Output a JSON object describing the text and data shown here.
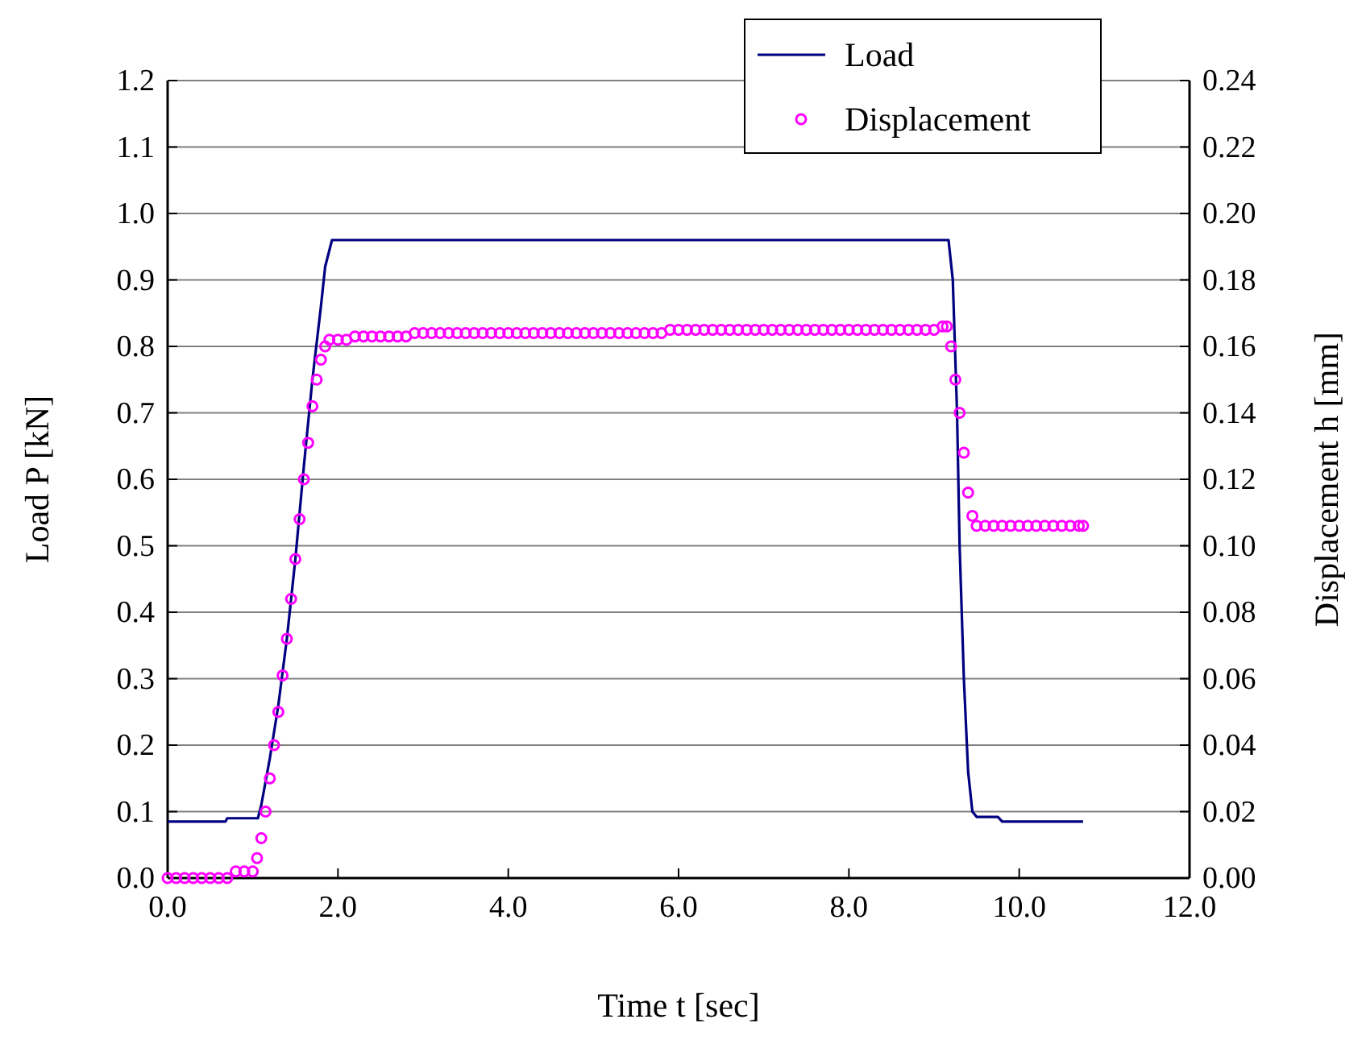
{
  "chart_data": {
    "type": "line",
    "xlabel": "Time t [sec]",
    "ylabel": "Load P [kN]",
    "y2label": "Displacement h [mm]",
    "xlim": [
      0,
      12
    ],
    "xticks": [
      {
        "value": 0,
        "label": "0.0"
      },
      {
        "value": 2,
        "label": "2.0"
      },
      {
        "value": 4,
        "label": "4.0"
      },
      {
        "value": 6,
        "label": "6.0"
      },
      {
        "value": 8,
        "label": "8.0"
      },
      {
        "value": 10,
        "label": "10.0"
      },
      {
        "value": 12,
        "label": "12.0"
      }
    ],
    "ylim": [
      0,
      1.2
    ],
    "yticks": [
      {
        "value": 0,
        "label": "0.0"
      },
      {
        "value": 0.1,
        "label": "0.1"
      },
      {
        "value": 0.2,
        "label": "0.2"
      },
      {
        "value": 0.3,
        "label": "0.3"
      },
      {
        "value": 0.4,
        "label": "0.4"
      },
      {
        "value": 0.5,
        "label": "0.5"
      },
      {
        "value": 0.6,
        "label": "0.6"
      },
      {
        "value": 0.7,
        "label": "0.7"
      },
      {
        "value": 0.8,
        "label": "0.8"
      },
      {
        "value": 0.9,
        "label": "0.9"
      },
      {
        "value": 1,
        "label": "1.0"
      },
      {
        "value": 1.1,
        "label": "1.1"
      },
      {
        "value": 1.2,
        "label": "1.2"
      }
    ],
    "y2lim": [
      0,
      0.24
    ],
    "y2ticks": [
      {
        "value": 0,
        "label": "0.00"
      },
      {
        "value": 0.02,
        "label": "0.02"
      },
      {
        "value": 0.04,
        "label": "0.04"
      },
      {
        "value": 0.06,
        "label": "0.06"
      },
      {
        "value": 0.08,
        "label": "0.08"
      },
      {
        "value": 0.1,
        "label": "0.10"
      },
      {
        "value": 0.12,
        "label": "0.12"
      },
      {
        "value": 0.14,
        "label": "0.14"
      },
      {
        "value": 0.16,
        "label": "0.16"
      },
      {
        "value": 0.18,
        "label": "0.18"
      },
      {
        "value": 0.2,
        "label": "0.20"
      },
      {
        "value": 0.22,
        "label": "0.22"
      },
      {
        "value": 0.24,
        "label": "0.24"
      }
    ],
    "grid": "y",
    "legend": "top right",
    "series": [
      {
        "name": "Load",
        "color": "#000080",
        "marker": "none",
        "line_style": "solid",
        "x": [
          0,
          0.68,
          0.7,
          1.06,
          1.1,
          1.2,
          1.3,
          1.4,
          1.5,
          1.6,
          1.7,
          1.8,
          1.85,
          1.93,
          9.17,
          9.22,
          9.27,
          9.3,
          9.35,
          9.4,
          9.45,
          9.5,
          9.75,
          9.8,
          10.75
        ],
        "values": [
          0.085,
          0.085,
          0.09,
          0.09,
          0.11,
          0.18,
          0.26,
          0.36,
          0.48,
          0.62,
          0.75,
          0.86,
          0.92,
          0.96,
          0.96,
          0.9,
          0.7,
          0.5,
          0.3,
          0.16,
          0.1,
          0.092,
          0.092,
          0.085,
          0.085
        ]
      },
      {
        "name": "Displacement",
        "type": "scatter",
        "axis": "y2",
        "color": "#ff00ff",
        "marker": "circle",
        "x": [
          0,
          0.1,
          0.2,
          0.3,
          0.4,
          0.5,
          0.6,
          0.7,
          0.8,
          0.9,
          1.0,
          1.05,
          1.1,
          1.15,
          1.2,
          1.25,
          1.3,
          1.35,
          1.4,
          1.45,
          1.5,
          1.55,
          1.6,
          1.65,
          1.7,
          1.75,
          1.8,
          1.85,
          1.9,
          2.0,
          2.1,
          2.2,
          2.3,
          2.4,
          2.5,
          2.6,
          2.7,
          2.8,
          2.9,
          3.0,
          3.1,
          3.2,
          3.3,
          3.4,
          3.5,
          3.6,
          3.7,
          3.8,
          3.9,
          4.0,
          4.1,
          4.2,
          4.3,
          4.4,
          4.5,
          4.6,
          4.7,
          4.8,
          4.9,
          5.0,
          5.1,
          5.2,
          5.3,
          5.4,
          5.5,
          5.6,
          5.7,
          5.8,
          5.9,
          6.0,
          6.1,
          6.2,
          6.3,
          6.4,
          6.5,
          6.6,
          6.7,
          6.8,
          6.9,
          7.0,
          7.1,
          7.2,
          7.3,
          7.4,
          7.5,
          7.6,
          7.7,
          7.8,
          7.9,
          8.0,
          8.1,
          8.2,
          8.3,
          8.4,
          8.5,
          8.6,
          8.7,
          8.8,
          8.9,
          9.0,
          9.1,
          9.15,
          9.2,
          9.25,
          9.3,
          9.35,
          9.4,
          9.45,
          9.5,
          9.6,
          9.7,
          9.8,
          9.9,
          10.0,
          10.1,
          10.2,
          10.3,
          10.4,
          10.5,
          10.6,
          10.7,
          10.75
        ],
        "values": [
          0,
          0,
          0,
          0,
          0,
          0,
          0,
          0,
          0.002,
          0.002,
          0.002,
          0.006,
          0.012,
          0.02,
          0.03,
          0.04,
          0.05,
          0.061,
          0.072,
          0.084,
          0.096,
          0.108,
          0.12,
          0.131,
          0.142,
          0.15,
          0.156,
          0.16,
          0.162,
          0.162,
          0.162,
          0.163,
          0.163,
          0.163,
          0.163,
          0.163,
          0.163,
          0.163,
          0.164,
          0.164,
          0.164,
          0.164,
          0.164,
          0.164,
          0.164,
          0.164,
          0.164,
          0.164,
          0.164,
          0.164,
          0.164,
          0.164,
          0.164,
          0.164,
          0.164,
          0.164,
          0.164,
          0.164,
          0.164,
          0.164,
          0.164,
          0.164,
          0.164,
          0.164,
          0.164,
          0.164,
          0.164,
          0.164,
          0.165,
          0.165,
          0.165,
          0.165,
          0.165,
          0.165,
          0.165,
          0.165,
          0.165,
          0.165,
          0.165,
          0.165,
          0.165,
          0.165,
          0.165,
          0.165,
          0.165,
          0.165,
          0.165,
          0.165,
          0.165,
          0.165,
          0.165,
          0.165,
          0.165,
          0.165,
          0.165,
          0.165,
          0.165,
          0.165,
          0.165,
          0.165,
          0.166,
          0.166,
          0.16,
          0.15,
          0.14,
          0.128,
          0.116,
          0.109,
          0.106,
          0.106,
          0.106,
          0.106,
          0.106,
          0.106,
          0.106,
          0.106,
          0.106,
          0.106,
          0.106,
          0.106,
          0.106,
          0.106
        ]
      }
    ]
  }
}
